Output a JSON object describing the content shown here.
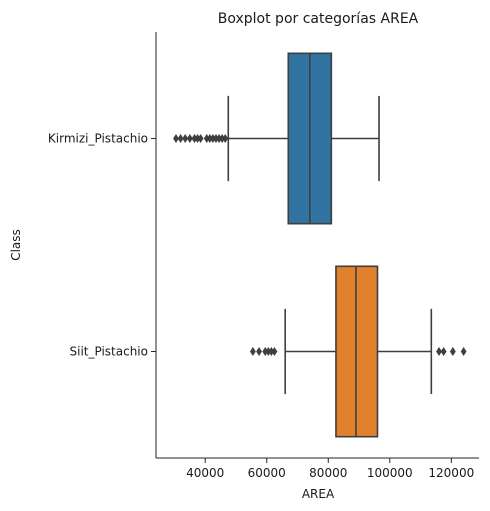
{
  "chart_data": {
    "type": "boxplot",
    "orientation": "horizontal",
    "title": "Boxplot por categorías AREA",
    "xlabel": "AREA",
    "ylabel": "Class",
    "xlim": [
      24000,
      129000
    ],
    "xticks": [
      40000,
      60000,
      80000,
      100000,
      120000
    ],
    "xtick_labels": [
      "40000",
      "60000",
      "80000",
      "100000",
      "120000"
    ],
    "grid": false,
    "categories": [
      "Kirmizi_Pistachio",
      "Siit_Pistachio"
    ],
    "colors": [
      "#3274a1",
      "#e1812c"
    ],
    "series": [
      {
        "category": "Kirmizi_Pistachio",
        "whisker_low": 47500,
        "q1": 67000,
        "median": 74000,
        "q3": 81000,
        "whisker_high": 96500,
        "outliers": [
          30500,
          32000,
          33500,
          35000,
          36500,
          37500,
          38500,
          40500,
          41500,
          42500,
          43500,
          44500,
          45500,
          46500
        ]
      },
      {
        "category": "Siit_Pistachio",
        "whisker_low": 66000,
        "q1": 82500,
        "median": 89000,
        "q3": 96000,
        "whisker_high": 113500,
        "outliers": [
          55500,
          57500,
          59500,
          60500,
          61500,
          62500,
          116000,
          117500,
          120500,
          124000
        ]
      }
    ]
  }
}
